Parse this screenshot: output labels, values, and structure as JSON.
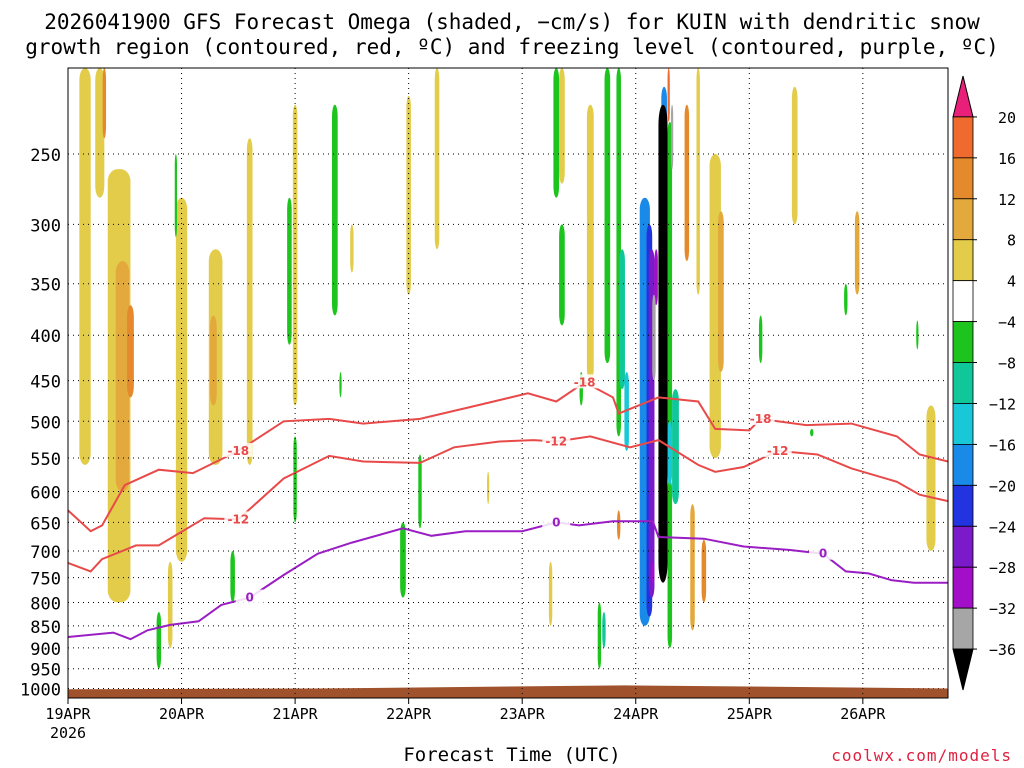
{
  "title_line1": "2026041900 GFS Forecast Omega (shaded, −cm/s) for KUIN with dendritic snow",
  "title_line2": "growth region (contoured, red, ºC) and freezing level (contoured, purple, ºC)",
  "xlabel": "Forecast Time (UTC)",
  "credit": "coolwx.com/models",
  "chart_data": {
    "type": "heatmap",
    "x_axis": {
      "ticks": [
        "19APR",
        "20APR",
        "21APR",
        "22APR",
        "23APR",
        "24APR",
        "25APR",
        "26APR"
      ],
      "first_tick_year": "2026",
      "range_days": [
        0,
        7.75
      ]
    },
    "y_axis": {
      "units": "hPa",
      "log_pressure": true,
      "ticks": [
        250,
        300,
        350,
        400,
        450,
        500,
        550,
        600,
        650,
        700,
        750,
        800,
        850,
        900,
        950,
        1000
      ],
      "range": [
        200,
        1025
      ]
    },
    "colorbar": {
      "labels": [
        20,
        16,
        12,
        8,
        4,
        -4,
        -8,
        -12,
        -16,
        -20,
        -24,
        -28,
        -32,
        -36
      ],
      "colors": [
        "#ff4d6d",
        "#ee6a2e",
        "#e48a2c",
        "#e3a93d",
        "#e2cc4a",
        "#ffffff",
        "#1dc41d",
        "#10c79a",
        "#19c8d8",
        "#1a8ae8",
        "#2233e0",
        "#7a1ac8",
        "#a30fc9",
        "#a6a6a6",
        "#000000"
      ]
    },
    "dgz_contours": [
      {
        "label": "-18",
        "color": "#e84a4a",
        "points": [
          [
            0,
            630
          ],
          [
            0.2,
            665
          ],
          [
            0.3,
            655
          ],
          [
            0.5,
            590
          ],
          [
            0.8,
            567
          ],
          [
            1.1,
            572
          ],
          [
            1.5,
            540
          ],
          [
            1.9,
            500
          ],
          [
            2.3,
            497
          ],
          [
            2.6,
            503
          ],
          [
            3.1,
            497
          ],
          [
            3.6,
            480
          ],
          [
            4.05,
            465
          ],
          [
            4.3,
            475
          ],
          [
            4.55,
            452
          ],
          [
            4.8,
            470
          ],
          [
            4.85,
            490
          ],
          [
            5.2,
            470
          ],
          [
            5.55,
            475
          ],
          [
            5.7,
            510
          ],
          [
            6.0,
            512
          ],
          [
            6.1,
            497
          ],
          [
            6.5,
            505
          ],
          [
            6.9,
            503
          ],
          [
            7.3,
            520
          ],
          [
            7.5,
            545
          ],
          [
            7.75,
            555
          ]
        ]
      },
      {
        "label": "-12",
        "color": "#e84a4a",
        "points": [
          [
            0,
            722
          ],
          [
            0.2,
            738
          ],
          [
            0.3,
            715
          ],
          [
            0.6,
            690
          ],
          [
            0.8,
            690
          ],
          [
            1.2,
            643
          ],
          [
            1.5,
            645
          ],
          [
            1.9,
            580
          ],
          [
            2.3,
            547
          ],
          [
            2.6,
            555
          ],
          [
            3.1,
            557
          ],
          [
            3.4,
            535
          ],
          [
            3.8,
            527
          ],
          [
            4.1,
            525
          ],
          [
            4.3,
            527
          ],
          [
            4.6,
            520
          ],
          [
            4.95,
            535
          ],
          [
            5.2,
            525
          ],
          [
            5.55,
            560
          ],
          [
            5.7,
            570
          ],
          [
            5.95,
            563
          ],
          [
            6.25,
            540
          ],
          [
            6.6,
            545
          ],
          [
            6.9,
            565
          ],
          [
            7.3,
            585
          ],
          [
            7.5,
            605
          ],
          [
            7.75,
            615
          ]
        ]
      }
    ],
    "freezing_contour": {
      "label": "0",
      "color": "#9a1ec3",
      "points": [
        [
          0,
          875
        ],
        [
          0.4,
          865
        ],
        [
          0.55,
          880
        ],
        [
          0.7,
          860
        ],
        [
          0.9,
          848
        ],
        [
          1.15,
          840
        ],
        [
          1.35,
          805
        ],
        [
          1.6,
          790
        ],
        [
          1.9,
          745
        ],
        [
          2.2,
          705
        ],
        [
          2.5,
          685
        ],
        [
          2.95,
          660
        ],
        [
          3.2,
          673
        ],
        [
          3.5,
          665
        ],
        [
          4.0,
          665
        ],
        [
          4.3,
          650
        ],
        [
          4.5,
          655
        ],
        [
          4.8,
          648
        ],
        [
          5.15,
          648
        ],
        [
          5.2,
          675
        ],
        [
          5.6,
          678
        ],
        [
          5.95,
          692
        ],
        [
          6.35,
          698
        ],
        [
          6.65,
          705
        ],
        [
          6.85,
          738
        ],
        [
          7.05,
          742
        ],
        [
          7.25,
          755
        ],
        [
          7.45,
          760
        ],
        [
          7.75,
          760
        ]
      ]
    },
    "omega_blobs": [
      {
        "bin": 4,
        "x": 0.45,
        "p1": 260,
        "p2": 800,
        "w": 0.2
      },
      {
        "bin": 3,
        "x": 0.48,
        "p1": 330,
        "p2": 600,
        "w": 0.12
      },
      {
        "bin": 2,
        "x": 0.55,
        "p1": 370,
        "p2": 470,
        "w": 0.06
      },
      {
        "bin": 4,
        "x": 0.15,
        "p1": 200,
        "p2": 560,
        "w": 0.1
      },
      {
        "bin": 4,
        "x": 0.28,
        "p1": 200,
        "p2": 280,
        "w": 0.08
      },
      {
        "bin": 4,
        "x": 1.3,
        "p1": 320,
        "p2": 560,
        "w": 0.12
      },
      {
        "bin": 3,
        "x": 1.28,
        "p1": 380,
        "p2": 480,
        "w": 0.06
      },
      {
        "bin": 4,
        "x": 1.0,
        "p1": 280,
        "p2": 720,
        "w": 0.1
      },
      {
        "bin": 4,
        "x": 1.6,
        "p1": 240,
        "p2": 560,
        "w": 0.05
      },
      {
        "bin": 4,
        "x": 2.0,
        "p1": 220,
        "p2": 480,
        "w": 0.04
      },
      {
        "bin": 4,
        "x": 2.5,
        "p1": 300,
        "p2": 340,
        "w": 0.03
      },
      {
        "bin": 4,
        "x": 3.0,
        "p1": 215,
        "p2": 360,
        "w": 0.04
      },
      {
        "bin": 4,
        "x": 3.25,
        "p1": 200,
        "p2": 320,
        "w": 0.04
      },
      {
        "bin": 4,
        "x": 4.35,
        "p1": 200,
        "p2": 270,
        "w": 0.05
      },
      {
        "bin": 4,
        "x": 4.6,
        "p1": 220,
        "p2": 450,
        "w": 0.06
      },
      {
        "bin": 4,
        "x": 5.55,
        "p1": 200,
        "p2": 360,
        "w": 0.03
      },
      {
        "bin": 4,
        "x": 5.7,
        "p1": 250,
        "p2": 550,
        "w": 0.1
      },
      {
        "bin": 3,
        "x": 5.75,
        "p1": 290,
        "p2": 440,
        "w": 0.05
      },
      {
        "bin": 4,
        "x": 6.4,
        "p1": 210,
        "p2": 300,
        "w": 0.05
      },
      {
        "bin": 3,
        "x": 6.95,
        "p1": 290,
        "p2": 360,
        "w": 0.04
      },
      {
        "bin": 4,
        "x": 7.6,
        "p1": 480,
        "p2": 700,
        "w": 0.08
      },
      {
        "bin": 4,
        "x": 4.25,
        "p1": 720,
        "p2": 850,
        "w": 0.03
      },
      {
        "bin": 4,
        "x": 3.7,
        "p1": 570,
        "p2": 620,
        "w": 0.02
      },
      {
        "bin": 4,
        "x": 0.9,
        "p1": 720,
        "p2": 900,
        "w": 0.04
      },
      {
        "bin": 6,
        "x": 2.35,
        "p1": 220,
        "p2": 380,
        "w": 0.05
      },
      {
        "bin": 6,
        "x": 1.95,
        "p1": 280,
        "p2": 410,
        "w": 0.04
      },
      {
        "bin": 6,
        "x": 2.0,
        "p1": 520,
        "p2": 650,
        "w": 0.03
      },
      {
        "bin": 6,
        "x": 2.4,
        "p1": 440,
        "p2": 470,
        "w": 0.02
      },
      {
        "bin": 6,
        "x": 0.95,
        "p1": 250,
        "p2": 310,
        "w": 0.02
      },
      {
        "bin": 6,
        "x": 1.45,
        "p1": 700,
        "p2": 800,
        "w": 0.04
      },
      {
        "bin": 6,
        "x": 2.95,
        "p1": 650,
        "p2": 790,
        "w": 0.05
      },
      {
        "bin": 6,
        "x": 3.1,
        "p1": 545,
        "p2": 660,
        "w": 0.03
      },
      {
        "bin": 6,
        "x": 0.8,
        "p1": 820,
        "p2": 950,
        "w": 0.04
      },
      {
        "bin": 6,
        "x": 4.3,
        "p1": 200,
        "p2": 280,
        "w": 0.05
      },
      {
        "bin": 6,
        "x": 4.35,
        "p1": 300,
        "p2": 390,
        "w": 0.05
      },
      {
        "bin": 6,
        "x": 4.52,
        "p1": 440,
        "p2": 480,
        "w": 0.03
      },
      {
        "bin": 6,
        "x": 4.75,
        "p1": 200,
        "p2": 430,
        "w": 0.05
      },
      {
        "bin": 6,
        "x": 4.85,
        "p1": 200,
        "p2": 520,
        "w": 0.04
      },
      {
        "bin": 6,
        "x": 5.3,
        "p1": 230,
        "p2": 560,
        "w": 0.04
      },
      {
        "bin": 6,
        "x": 6.1,
        "p1": 380,
        "p2": 430,
        "w": 0.03
      },
      {
        "bin": 6,
        "x": 6.55,
        "p1": 510,
        "p2": 520,
        "w": 0.03
      },
      {
        "bin": 6,
        "x": 6.85,
        "p1": 350,
        "p2": 380,
        "w": 0.03
      },
      {
        "bin": 6,
        "x": 7.48,
        "p1": 385,
        "p2": 415,
        "w": 0.02
      },
      {
        "bin": 7,
        "x": 4.72,
        "p1": 820,
        "p2": 900,
        "w": 0.03
      },
      {
        "bin": 6,
        "x": 4.68,
        "p1": 800,
        "p2": 950,
        "w": 0.03
      },
      {
        "bin": 6,
        "x": 5.3,
        "p1": 580,
        "p2": 900,
        "w": 0.04
      },
      {
        "bin": 7,
        "x": 4.88,
        "p1": 320,
        "p2": 460,
        "w": 0.05
      },
      {
        "bin": 8,
        "x": 4.92,
        "p1": 440,
        "p2": 540,
        "w": 0.04
      },
      {
        "bin": 7,
        "x": 5.35,
        "p1": 460,
        "p2": 620,
        "w": 0.06
      },
      {
        "bin": 8,
        "x": 5.3,
        "p1": 500,
        "p2": 590,
        "w": 0.04
      },
      {
        "bin": 9,
        "x": 5.08,
        "p1": 280,
        "p2": 850,
        "w": 0.09
      },
      {
        "bin": 10,
        "x": 5.12,
        "p1": 300,
        "p2": 830,
        "w": 0.05
      },
      {
        "bin": 11,
        "x": 5.14,
        "p1": 320,
        "p2": 790,
        "w": 0.05
      },
      {
        "bin": 9,
        "x": 5.25,
        "p1": 210,
        "p2": 560,
        "w": 0.05
      },
      {
        "bin": 12,
        "x": 5.18,
        "p1": 320,
        "p2": 370,
        "w": 0.03
      },
      {
        "bin": 12,
        "x": 5.15,
        "p1": 720,
        "p2": 760,
        "w": 0.03
      },
      {
        "bin": 13,
        "x": 5.16,
        "p1": 360,
        "p2": 450,
        "w": 0.03
      },
      {
        "bin": 13,
        "x": 5.32,
        "p1": 220,
        "p2": 260,
        "w": 0.02
      },
      {
        "bin": 5,
        "x": 5.3,
        "p1": 200,
        "p2": 215,
        "w": 0.03
      },
      {
        "bin": 1,
        "x": 5.29,
        "p1": 200,
        "p2": 230,
        "w": 0.02
      },
      {
        "bin": 2,
        "x": 5.45,
        "p1": 220,
        "p2": 330,
        "w": 0.04
      },
      {
        "bin": 2,
        "x": 5.6,
        "p1": 680,
        "p2": 800,
        "w": 0.04
      },
      {
        "bin": 3,
        "x": 5.5,
        "p1": 620,
        "p2": 860,
        "w": 0.04
      },
      {
        "bin": 2,
        "x": 0.32,
        "p1": 200,
        "p2": 240,
        "w": 0.03
      },
      {
        "bin": 2,
        "x": 4.85,
        "p1": 630,
        "p2": 680,
        "w": 0.03
      }
    ],
    "black_core": {
      "x": 5.24,
      "p1": 220,
      "p2": 760,
      "w": 0.08
    },
    "legend_tick_labels_note": "colorbar"
  }
}
